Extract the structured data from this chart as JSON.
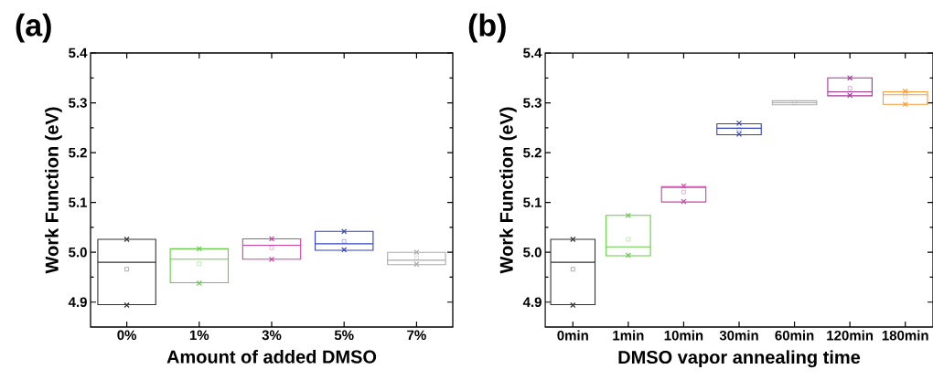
{
  "chart_data": [
    {
      "type": "box",
      "title": "(a)",
      "xlabel": "Amount of added DMSO",
      "ylabel": "Work Function (eV)",
      "categories": [
        "0%",
        "1%",
        "3%",
        "5%",
        "7%"
      ],
      "boxes": [
        {
          "low": 4.895,
          "q1": 4.895,
          "median": 4.98,
          "q3": 5.026,
          "high": 5.026,
          "mean": 4.966,
          "outliers": [
            4.894,
            5.026
          ]
        },
        {
          "low": 4.939,
          "q1": 4.939,
          "median": 4.986,
          "q3": 5.007,
          "high": 5.007,
          "mean": 4.977,
          "outliers": [
            4.938,
            5.007
          ]
        },
        {
          "low": 4.986,
          "q1": 4.986,
          "median": 5.014,
          "q3": 5.027,
          "high": 5.027,
          "mean": 5.009,
          "outliers": [
            4.986,
            5.027
          ]
        },
        {
          "low": 5.004,
          "q1": 5.004,
          "median": 5.017,
          "q3": 5.042,
          "high": 5.042,
          "mean": 5.022,
          "outliers": [
            5.005,
            5.042
          ]
        },
        {
          "low": 4.975,
          "q1": 4.975,
          "median": 4.984,
          "q3": 5.0,
          "high": 5.0,
          "mean": 4.989,
          "outliers": [
            4.976,
            5.0
          ]
        }
      ],
      "colors": [
        "#333333",
        "#66cc44",
        "#cc44aa",
        "#3344bb",
        "#aaaaaa"
      ],
      "ylim": [
        4.85,
        5.4
      ],
      "yticks": [
        4.9,
        {
          "value": 5.0,
          "label": "5.0"
        },
        5.1,
        5.2,
        5.3,
        5.4
      ]
    },
    {
      "type": "box",
      "title": "(b)",
      "xlabel": "DMSO vapor annealing time",
      "ylabel": "Work Function (eV)",
      "categories": [
        "0min",
        "1min",
        "10min",
        "30min",
        "60min",
        "120min",
        "180min"
      ],
      "boxes": [
        {
          "low": 4.895,
          "q1": 4.895,
          "median": 4.98,
          "q3": 5.026,
          "high": 5.026,
          "mean": 4.966,
          "outliers": [
            4.894,
            5.026
          ]
        },
        {
          "low": 4.993,
          "q1": 4.993,
          "median": 5.011,
          "q3": 5.074,
          "high": 5.074,
          "mean": 5.026,
          "outliers": [
            4.994,
            5.074
          ]
        },
        {
          "low": 5.101,
          "q1": 5.101,
          "median": 5.13,
          "q3": 5.132,
          "high": 5.132,
          "mean": 5.121,
          "outliers": [
            5.102,
            5.133
          ]
        },
        {
          "low": 5.236,
          "q1": 5.236,
          "median": 5.249,
          "q3": 5.258,
          "high": 5.258,
          "mean": 5.246,
          "outliers": [
            5.237,
            5.259
          ]
        },
        {
          "low": 5.296,
          "q1": 5.296,
          "median": 5.3,
          "q3": 5.304,
          "high": 5.304,
          "mean": 5.3
        },
        {
          "low": 5.314,
          "q1": 5.314,
          "median": 5.322,
          "q3": 5.35,
          "high": 5.35,
          "mean": 5.329,
          "outliers": [
            5.315,
            5.35
          ]
        },
        {
          "low": 5.297,
          "q1": 5.297,
          "median": 5.316,
          "q3": 5.322,
          "high": 5.322,
          "mean": 5.312,
          "outliers": [
            5.297,
            5.323
          ]
        }
      ],
      "colors": [
        "#333333",
        "#66cc44",
        "#cc44aa",
        "#3344bb",
        "#aaaaaa",
        "#aa3399",
        "#ff9933"
      ],
      "ylim": [
        4.85,
        5.4
      ],
      "yticks": [
        4.9,
        {
          "value": 5.0,
          "label": "5.0"
        },
        5.1,
        5.2,
        5.3,
        5.4
      ]
    }
  ]
}
